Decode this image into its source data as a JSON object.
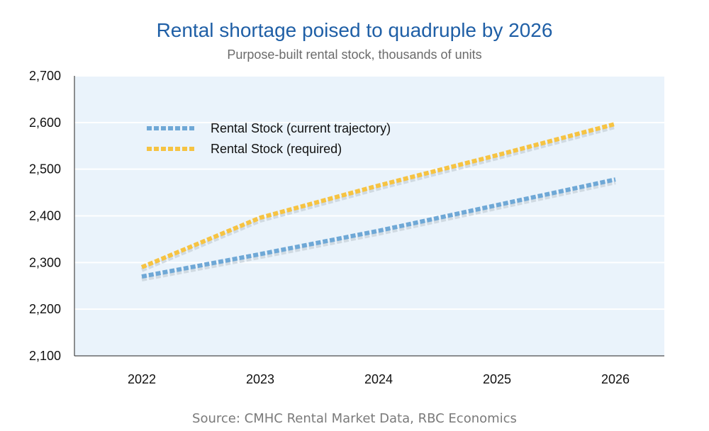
{
  "chart_data": {
    "type": "line",
    "title": "Rental shortage poised to quadruple by 2026",
    "subtitle": "Purpose-built rental stock, thousands of units",
    "source": "Source: CMHC Rental Market Data, RBC Economics",
    "xlabel": "",
    "ylabel": "",
    "x": [
      "2022",
      "2023",
      "2024",
      "2025",
      "2026"
    ],
    "ylim": [
      2100,
      2700
    ],
    "yticks": [
      "2,100",
      "2,200",
      "2,300",
      "2,400",
      "2,500",
      "2,600",
      "2,700"
    ],
    "ytick_values": [
      2100,
      2200,
      2300,
      2400,
      2500,
      2600,
      2700
    ],
    "grid": true,
    "legend_position": "top-left",
    "plot_background": "#eaf3fb",
    "series": [
      {
        "name": "Rental Stock (current trajectory)",
        "color": "#6fa8d6",
        "values": [
          2270,
          2318,
          2368,
          2423,
          2478
        ]
      },
      {
        "name": "Rental Stock (required)",
        "color": "#f6c342",
        "values": [
          2290,
          2396,
          2465,
          2530,
          2597
        ]
      }
    ]
  }
}
